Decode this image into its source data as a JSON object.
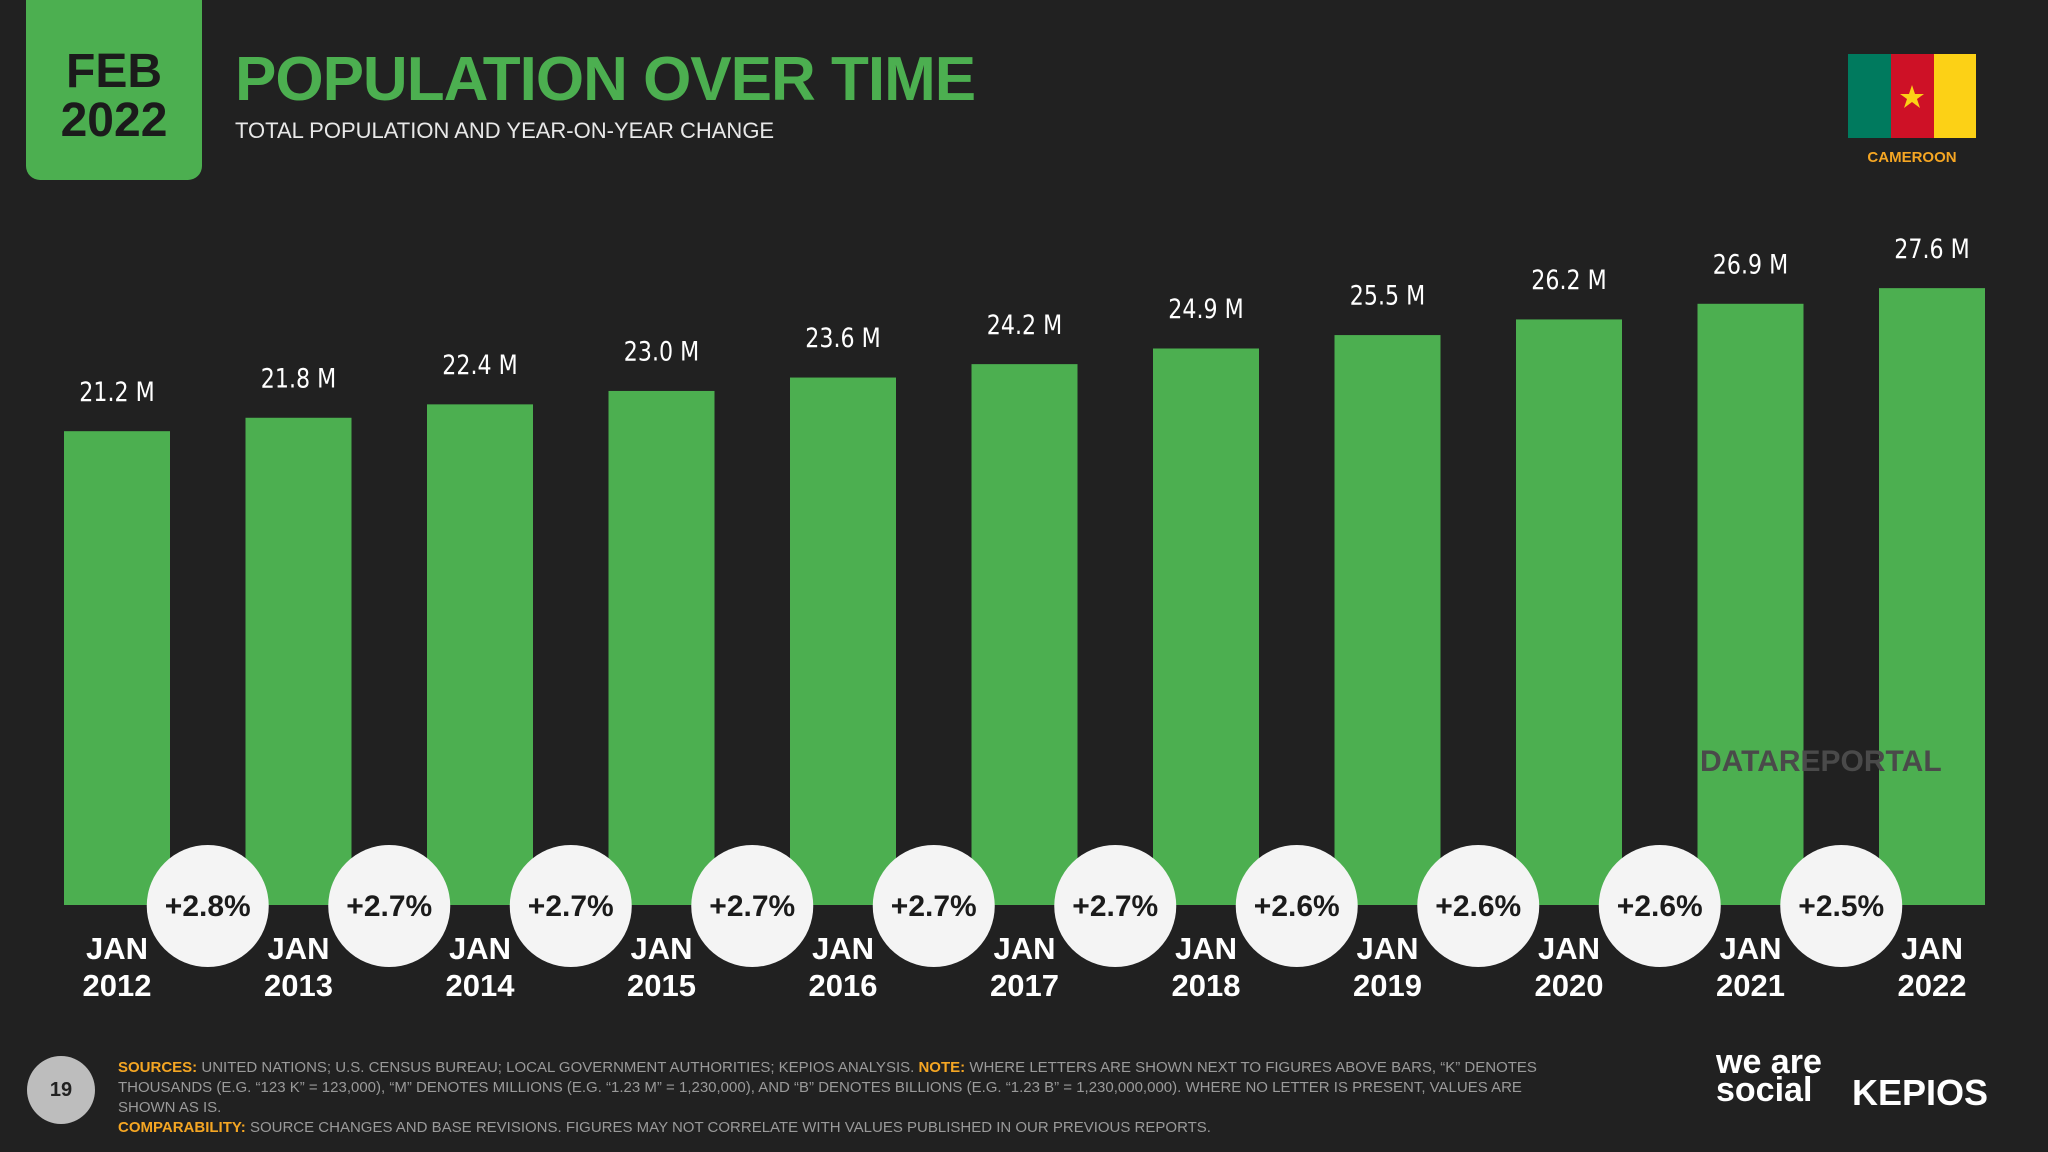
{
  "header": {
    "month": "FEB",
    "year": "2022",
    "title": "POPULATION OVER TIME",
    "subtitle": "TOTAL POPULATION AND YEAR-ON-YEAR CHANGE",
    "country": "CAMEROON"
  },
  "chart_data": {
    "type": "bar",
    "color": "#4caf50",
    "categories": [
      "JAN 2012",
      "JAN 2013",
      "JAN 2014",
      "JAN 2015",
      "JAN 2016",
      "JAN 2017",
      "JAN 2018",
      "JAN 2019",
      "JAN 2020",
      "JAN 2021",
      "JAN 2022"
    ],
    "values": [
      21.2,
      21.8,
      22.4,
      23.0,
      23.6,
      24.2,
      24.9,
      25.5,
      26.2,
      26.9,
      27.6
    ],
    "value_labels": [
      "21.2 M",
      "21.8 M",
      "22.4 M",
      "23.0 M",
      "23.6 M",
      "24.2 M",
      "24.9 M",
      "25.5 M",
      "26.2 M",
      "26.9 M",
      "27.6 M"
    ],
    "yoy_change": {
      "values": [
        2.8,
        2.7,
        2.7,
        2.7,
        2.7,
        2.7,
        2.6,
        2.6,
        2.6,
        2.5
      ],
      "value_labels": [
        "+2.8%",
        "+2.7%",
        "+2.7%",
        "+2.7%",
        "+2.7%",
        "+2.7%",
        "+2.6%",
        "+2.6%",
        "+2.6%",
        "+2.5%"
      ]
    }
  },
  "watermark": "DATAREPORTAL",
  "footer": {
    "page": "19",
    "sources_label": "SOURCES:",
    "sources": "UNITED NATIONS; U.S. CENSUS BUREAU; LOCAL GOVERNMENT AUTHORITIES; KEPIOS ANALYSIS.",
    "note_label": "NOTE:",
    "note": "WHERE LETTERS ARE SHOWN NEXT TO FIGURES ABOVE BARS, “K” DENOTES THOUSANDS (E.G. “123 K” = 123,000), “M” DENOTES MILLIONS (E.G. “1.23 M” = 1,230,000), AND “B” DENOTES BILLIONS (E.G. “1.23 B” = 1,230,000,000). WHERE NO LETTER IS PRESENT, VALUES ARE SHOWN AS IS.",
    "comparability_label": "COMPARABILITY:",
    "comparability": "SOURCE CHANGES AND BASE REVISIONS. FIGURES MAY NOT CORRELATE WITH VALUES PUBLISHED IN OUR PREVIOUS REPORTS.",
    "brand1": "we are social",
    "brand2": "KEPIOS"
  }
}
